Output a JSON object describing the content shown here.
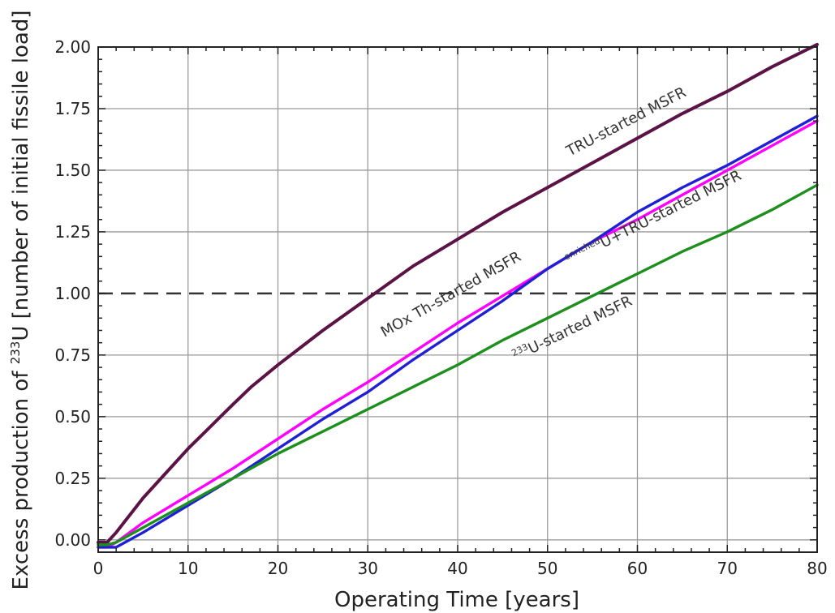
{
  "chart_data": {
    "type": "line",
    "xlabel": "Operating Time [years]",
    "ylabel_parts": {
      "prefix": "Excess production of ",
      "superscript": "233",
      "suffix": "U [number of initial fissile load]"
    },
    "xlim": [
      0,
      80
    ],
    "ylim": [
      -0.05,
      2.0
    ],
    "x_ticks": [
      0,
      10,
      20,
      30,
      40,
      50,
      60,
      70,
      80
    ],
    "y_ticks": [
      0.0,
      0.25,
      0.5,
      0.75,
      1.0,
      1.25,
      1.5,
      1.75,
      2.0
    ],
    "x_tick_labels": [
      "0",
      "10",
      "20",
      "30",
      "40",
      "50",
      "60",
      "70",
      "80"
    ],
    "y_tick_labels": [
      "0.00",
      "0.25",
      "0.50",
      "0.75",
      "1.00",
      "1.25",
      "1.50",
      "1.75",
      "2.00"
    ],
    "grid": true,
    "reference_line": {
      "y": 1.0,
      "style": "dashed",
      "color": "#333333"
    },
    "series": [
      {
        "name": "TRU-started MSFR",
        "color": "#5b1244",
        "x": [
          0,
          1,
          2,
          5,
          10,
          15,
          17,
          20,
          25,
          30,
          35,
          40,
          45,
          50,
          55,
          60,
          65,
          70,
          75,
          80
        ],
        "y": [
          -0.01,
          -0.01,
          0.03,
          0.17,
          0.37,
          0.55,
          0.62,
          0.71,
          0.85,
          0.98,
          1.11,
          1.22,
          1.33,
          1.43,
          1.53,
          1.63,
          1.73,
          1.82,
          1.92,
          2.01
        ]
      },
      {
        "name": "MOx Th-started MSFR",
        "color": "#ff00ff",
        "x": [
          0,
          1,
          2,
          5,
          10,
          15,
          20,
          25,
          30,
          35,
          40,
          45,
          50,
          55,
          60,
          65,
          70,
          75,
          80
        ],
        "y": [
          -0.03,
          -0.03,
          -0.01,
          0.07,
          0.18,
          0.29,
          0.41,
          0.53,
          0.64,
          0.76,
          0.88,
          0.99,
          1.1,
          1.21,
          1.3,
          1.4,
          1.5,
          1.6,
          1.7
        ]
      },
      {
        "name": "enrichedU+TRU-started MSFR",
        "label_parts": {
          "superscript": "enriched",
          "text": "U+TRU-started MSFR"
        },
        "color": "#1f1fd6",
        "x": [
          0,
          1,
          2,
          5,
          10,
          15,
          20,
          25,
          30,
          35,
          40,
          45,
          50,
          55,
          60,
          65,
          70,
          75,
          80
        ],
        "y": [
          -0.03,
          -0.03,
          -0.03,
          0.03,
          0.14,
          0.25,
          0.37,
          0.49,
          0.6,
          0.73,
          0.85,
          0.97,
          1.1,
          1.21,
          1.33,
          1.43,
          1.52,
          1.62,
          1.72
        ]
      },
      {
        "name": "233U-started MSFR",
        "label_parts": {
          "superscript": "233",
          "text": "U-started MSFR"
        },
        "color": "#1d8f1d",
        "x": [
          0,
          1,
          2,
          5,
          10,
          15,
          20,
          25,
          30,
          35,
          40,
          45,
          50,
          55,
          60,
          65,
          70,
          75,
          80
        ],
        "y": [
          -0.02,
          -0.02,
          -0.01,
          0.05,
          0.15,
          0.25,
          0.35,
          0.44,
          0.53,
          0.62,
          0.71,
          0.81,
          0.9,
          0.99,
          1.08,
          1.17,
          1.25,
          1.34,
          1.44
        ]
      }
    ],
    "annotations": [
      {
        "series_index": 0,
        "text": "TRU-started MSFR",
        "at_x": 59,
        "at_y": 1.68
      },
      {
        "series_index": 1,
        "text": "MOx Th-started MSFR",
        "at_x": 39.5,
        "at_y": 0.98
      },
      {
        "series_index": 2,
        "text": "enrichedU+TRU-started MSFR",
        "at_x": 62,
        "at_y": 1.29
      },
      {
        "series_index": 3,
        "text": "233U-started MSFR",
        "at_x": 53,
        "at_y": 0.84
      }
    ]
  }
}
